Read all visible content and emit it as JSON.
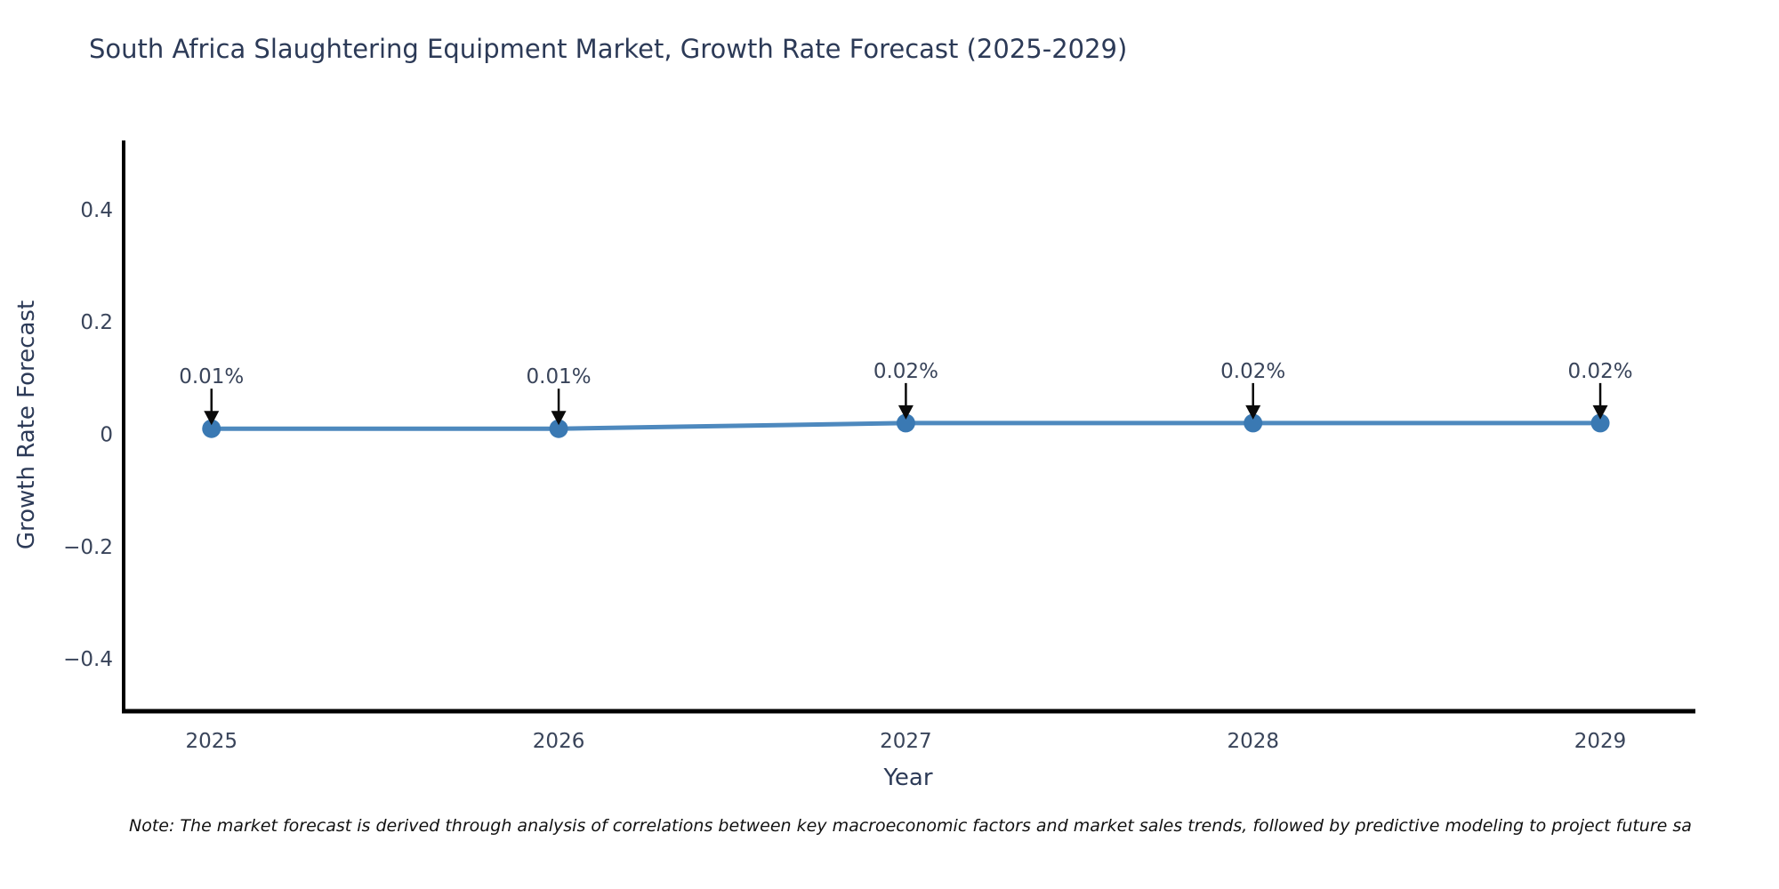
{
  "chart": {
    "title": "South Africa Slaughtering Equipment Market, Growth Rate Forecast (2025-2029)",
    "xlabel": "Year",
    "ylabel": "Growth Rate Forecast",
    "note": "Note: The market forecast is derived through analysis of correlations between key macroeconomic factors and market sales trends, followed by predictive modeling to project future sa",
    "colors": {
      "line": "#4e89be",
      "marker": "#3a79b3",
      "arrow": "#0a0a0a",
      "axis": "#000000",
      "heading_text": "#2c3a57",
      "tick_text": "#39445a",
      "annotation_text": "#39445a",
      "note_text": "#111111"
    }
  },
  "chart_data": {
    "type": "line",
    "x": [
      2025,
      2026,
      2027,
      2028,
      2029
    ],
    "series": [
      {
        "name": "Growth Rate Forecast",
        "values": [
          0.01,
          0.01,
          0.02,
          0.02,
          0.02
        ]
      }
    ],
    "point_labels": [
      "0.01%",
      "0.01%",
      "0.02%",
      "0.02%",
      "0.02%"
    ],
    "title": "South Africa Slaughtering Equipment Market, Growth Rate Forecast (2025-2029)",
    "xlabel": "Year",
    "ylabel": "Growth Rate Forecast",
    "xticks": [
      "2025",
      "2026",
      "2027",
      "2028",
      "2029"
    ],
    "yticks": [
      {
        "label": "0.4",
        "value": 0.4
      },
      {
        "label": "0.2",
        "value": 0.2
      },
      {
        "label": "0",
        "value": 0.0
      },
      {
        "label": "−0.2",
        "value": -0.2
      },
      {
        "label": "−0.4",
        "value": -0.4
      }
    ],
    "xlim": [
      2024.747,
      2029.274
    ],
    "ylim": [
      -0.493,
      0.52
    ],
    "grid": false,
    "legend": "none",
    "annotations_style": "value label above point with downward arrow"
  }
}
